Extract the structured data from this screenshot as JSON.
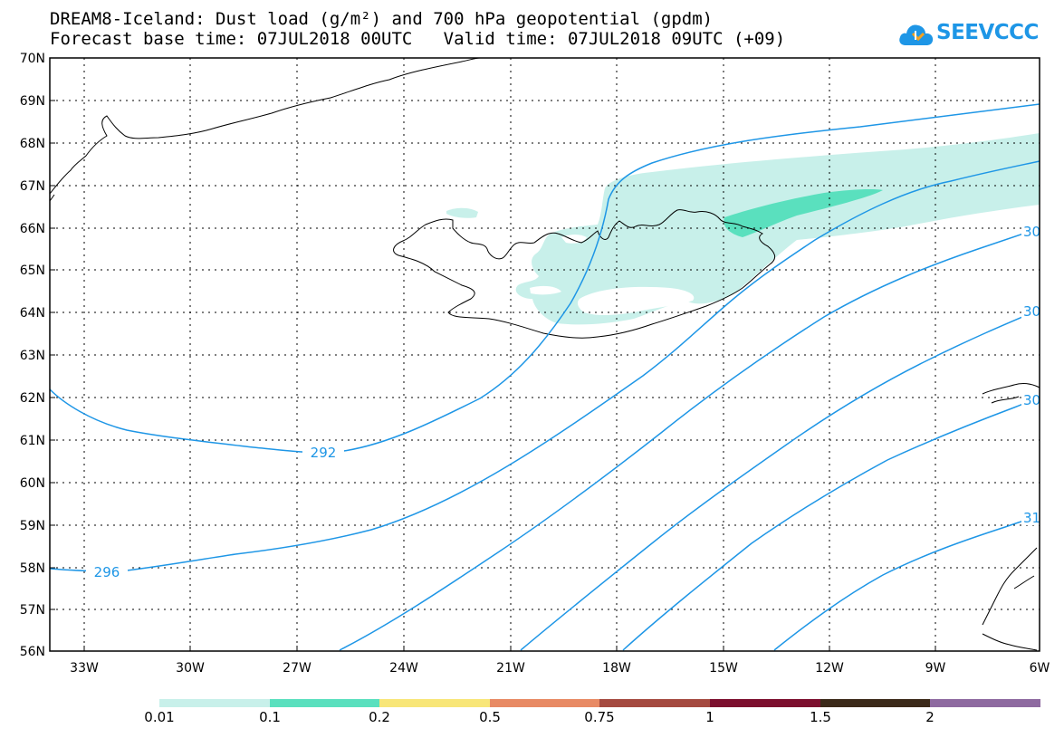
{
  "header": {
    "title_line1": "DREAM8-Iceland: Dust load (g/m²) and 700 hPa geopotential (gpdm)",
    "title_line2": "Forecast base time: 07JUL2018 00UTC   Valid time: 07JUL2018 09UTC (+09)"
  },
  "logo": {
    "text": "SEEVCCC",
    "icon": "cloud-icon"
  },
  "map": {
    "lat_labels": [
      "70N",
      "69N",
      "68N",
      "67N",
      "66N",
      "65N",
      "64N",
      "63N",
      "62N",
      "61N",
      "60N",
      "59N",
      "58N",
      "57N",
      "56N"
    ],
    "lon_labels": [
      "33W",
      "30W",
      "27W",
      "24W",
      "21W",
      "18W",
      "15W",
      "12W",
      "9W",
      "6W"
    ],
    "contour_labels": [
      "292",
      "296",
      "30",
      "30",
      "30",
      "31"
    ],
    "colors": {
      "contour": "#1e96e6",
      "coast": "#000000"
    }
  },
  "colorbar": {
    "labels": [
      "0.01",
      "0.1",
      "0.2",
      "0.5",
      "0.75",
      "1",
      "1.5",
      "2"
    ],
    "colors": [
      "#c8f0ea",
      "#5ae0be",
      "#f8e678",
      "#e88a64",
      "#a54a40",
      "#7c0f2e",
      "#3c2a1a",
      "#8e6aa0"
    ]
  }
}
